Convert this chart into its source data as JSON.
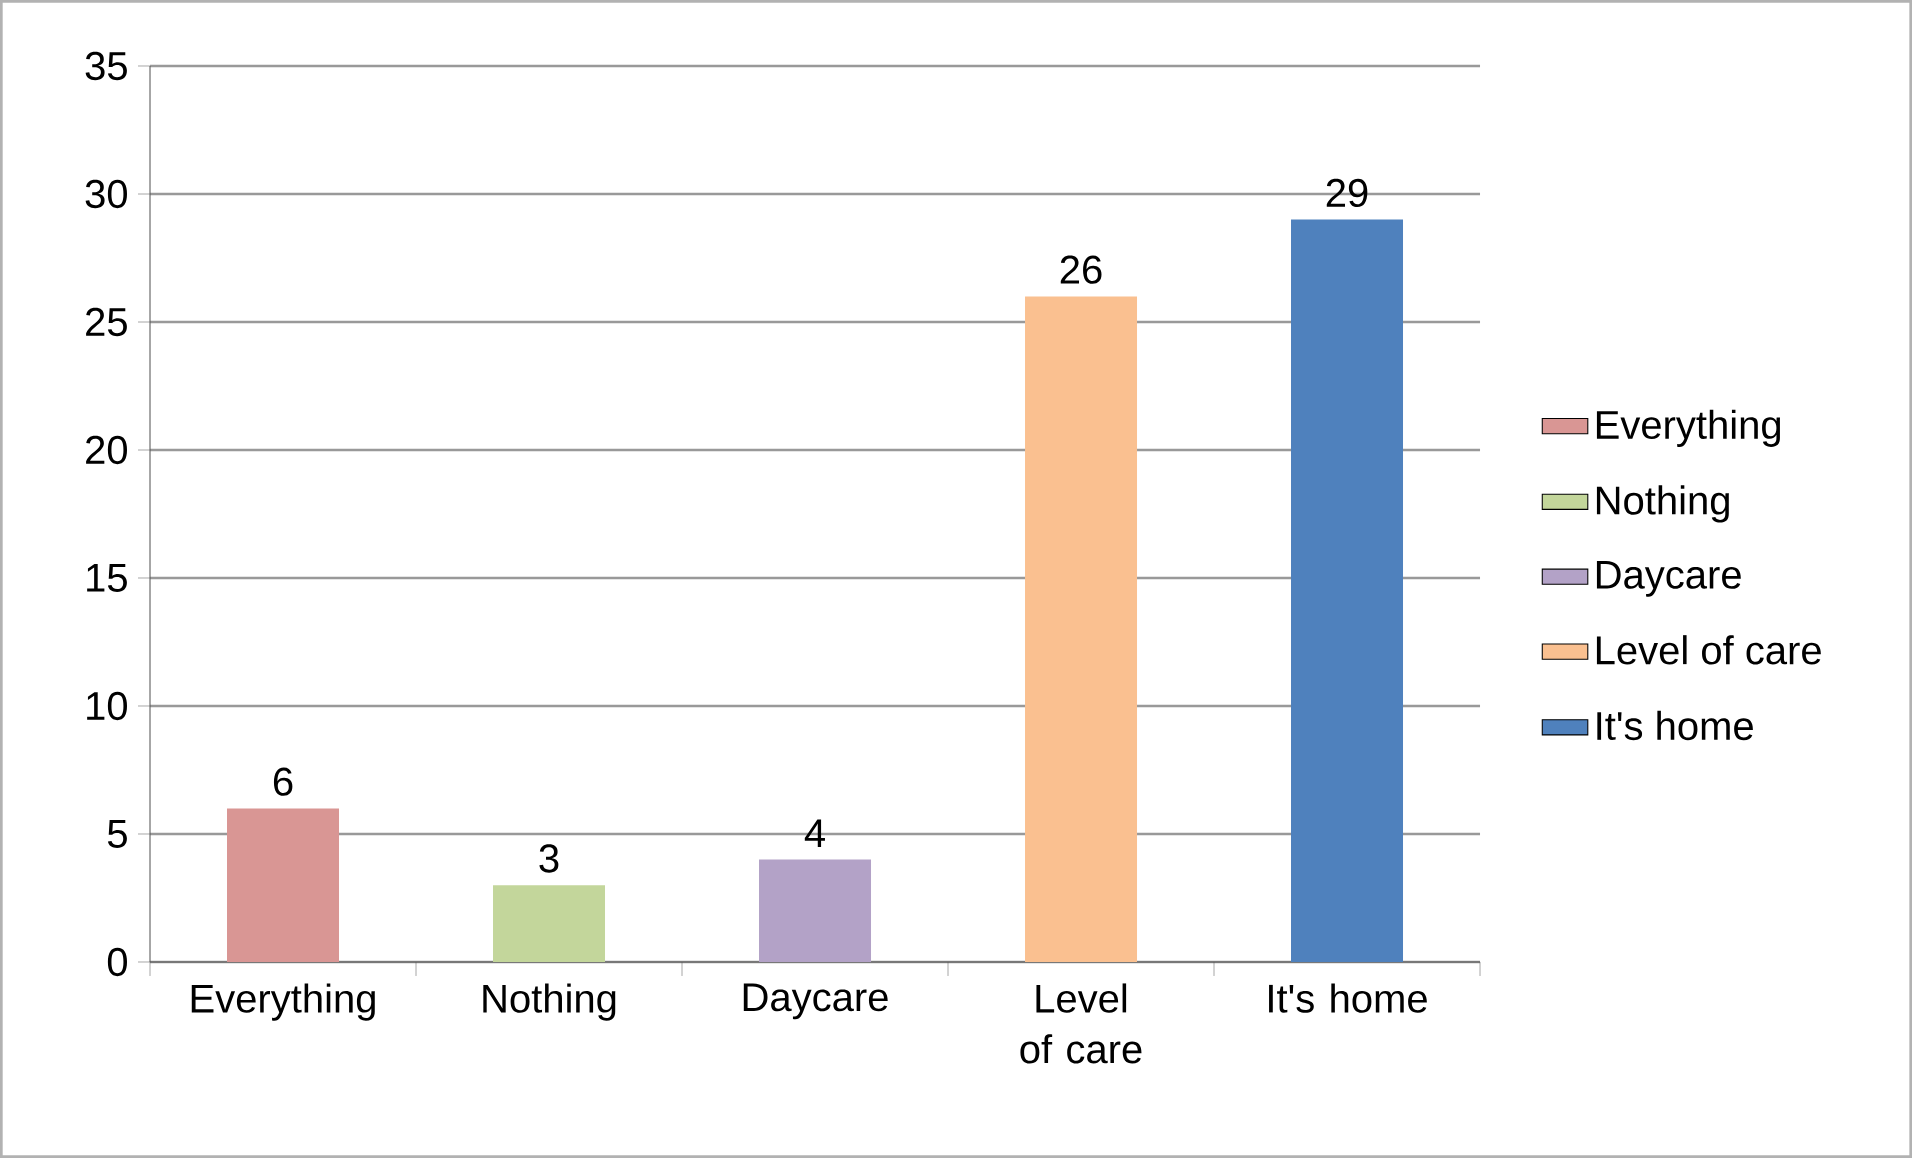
{
  "chart_data": {
    "type": "bar",
    "categories": [
      "Everything",
      "Nothing",
      "Daycare",
      "Level of care",
      "It's home"
    ],
    "series": [
      {
        "name": "Everything",
        "color": "#d99694",
        "values": [
          6,
          null,
          null,
          null,
          null
        ]
      },
      {
        "name": "Nothing",
        "color": "#c3d69b",
        "values": [
          null,
          3,
          null,
          null,
          null
        ]
      },
      {
        "name": "Daycare",
        "color": "#b3a2c7",
        "values": [
          null,
          null,
          4,
          null,
          null
        ]
      },
      {
        "name": "Level of care",
        "color": "#fac090",
        "values": [
          null,
          null,
          null,
          26,
          null
        ]
      },
      {
        "name": "It's home",
        "color": "#4f81bd",
        "values": [
          null,
          null,
          null,
          null,
          29
        ]
      }
    ],
    "ylim": [
      0,
      35
    ],
    "yticks": [
      0,
      5,
      10,
      15,
      20,
      25,
      30,
      35
    ],
    "grid": "y",
    "legend": "right",
    "data_labels": true
  }
}
